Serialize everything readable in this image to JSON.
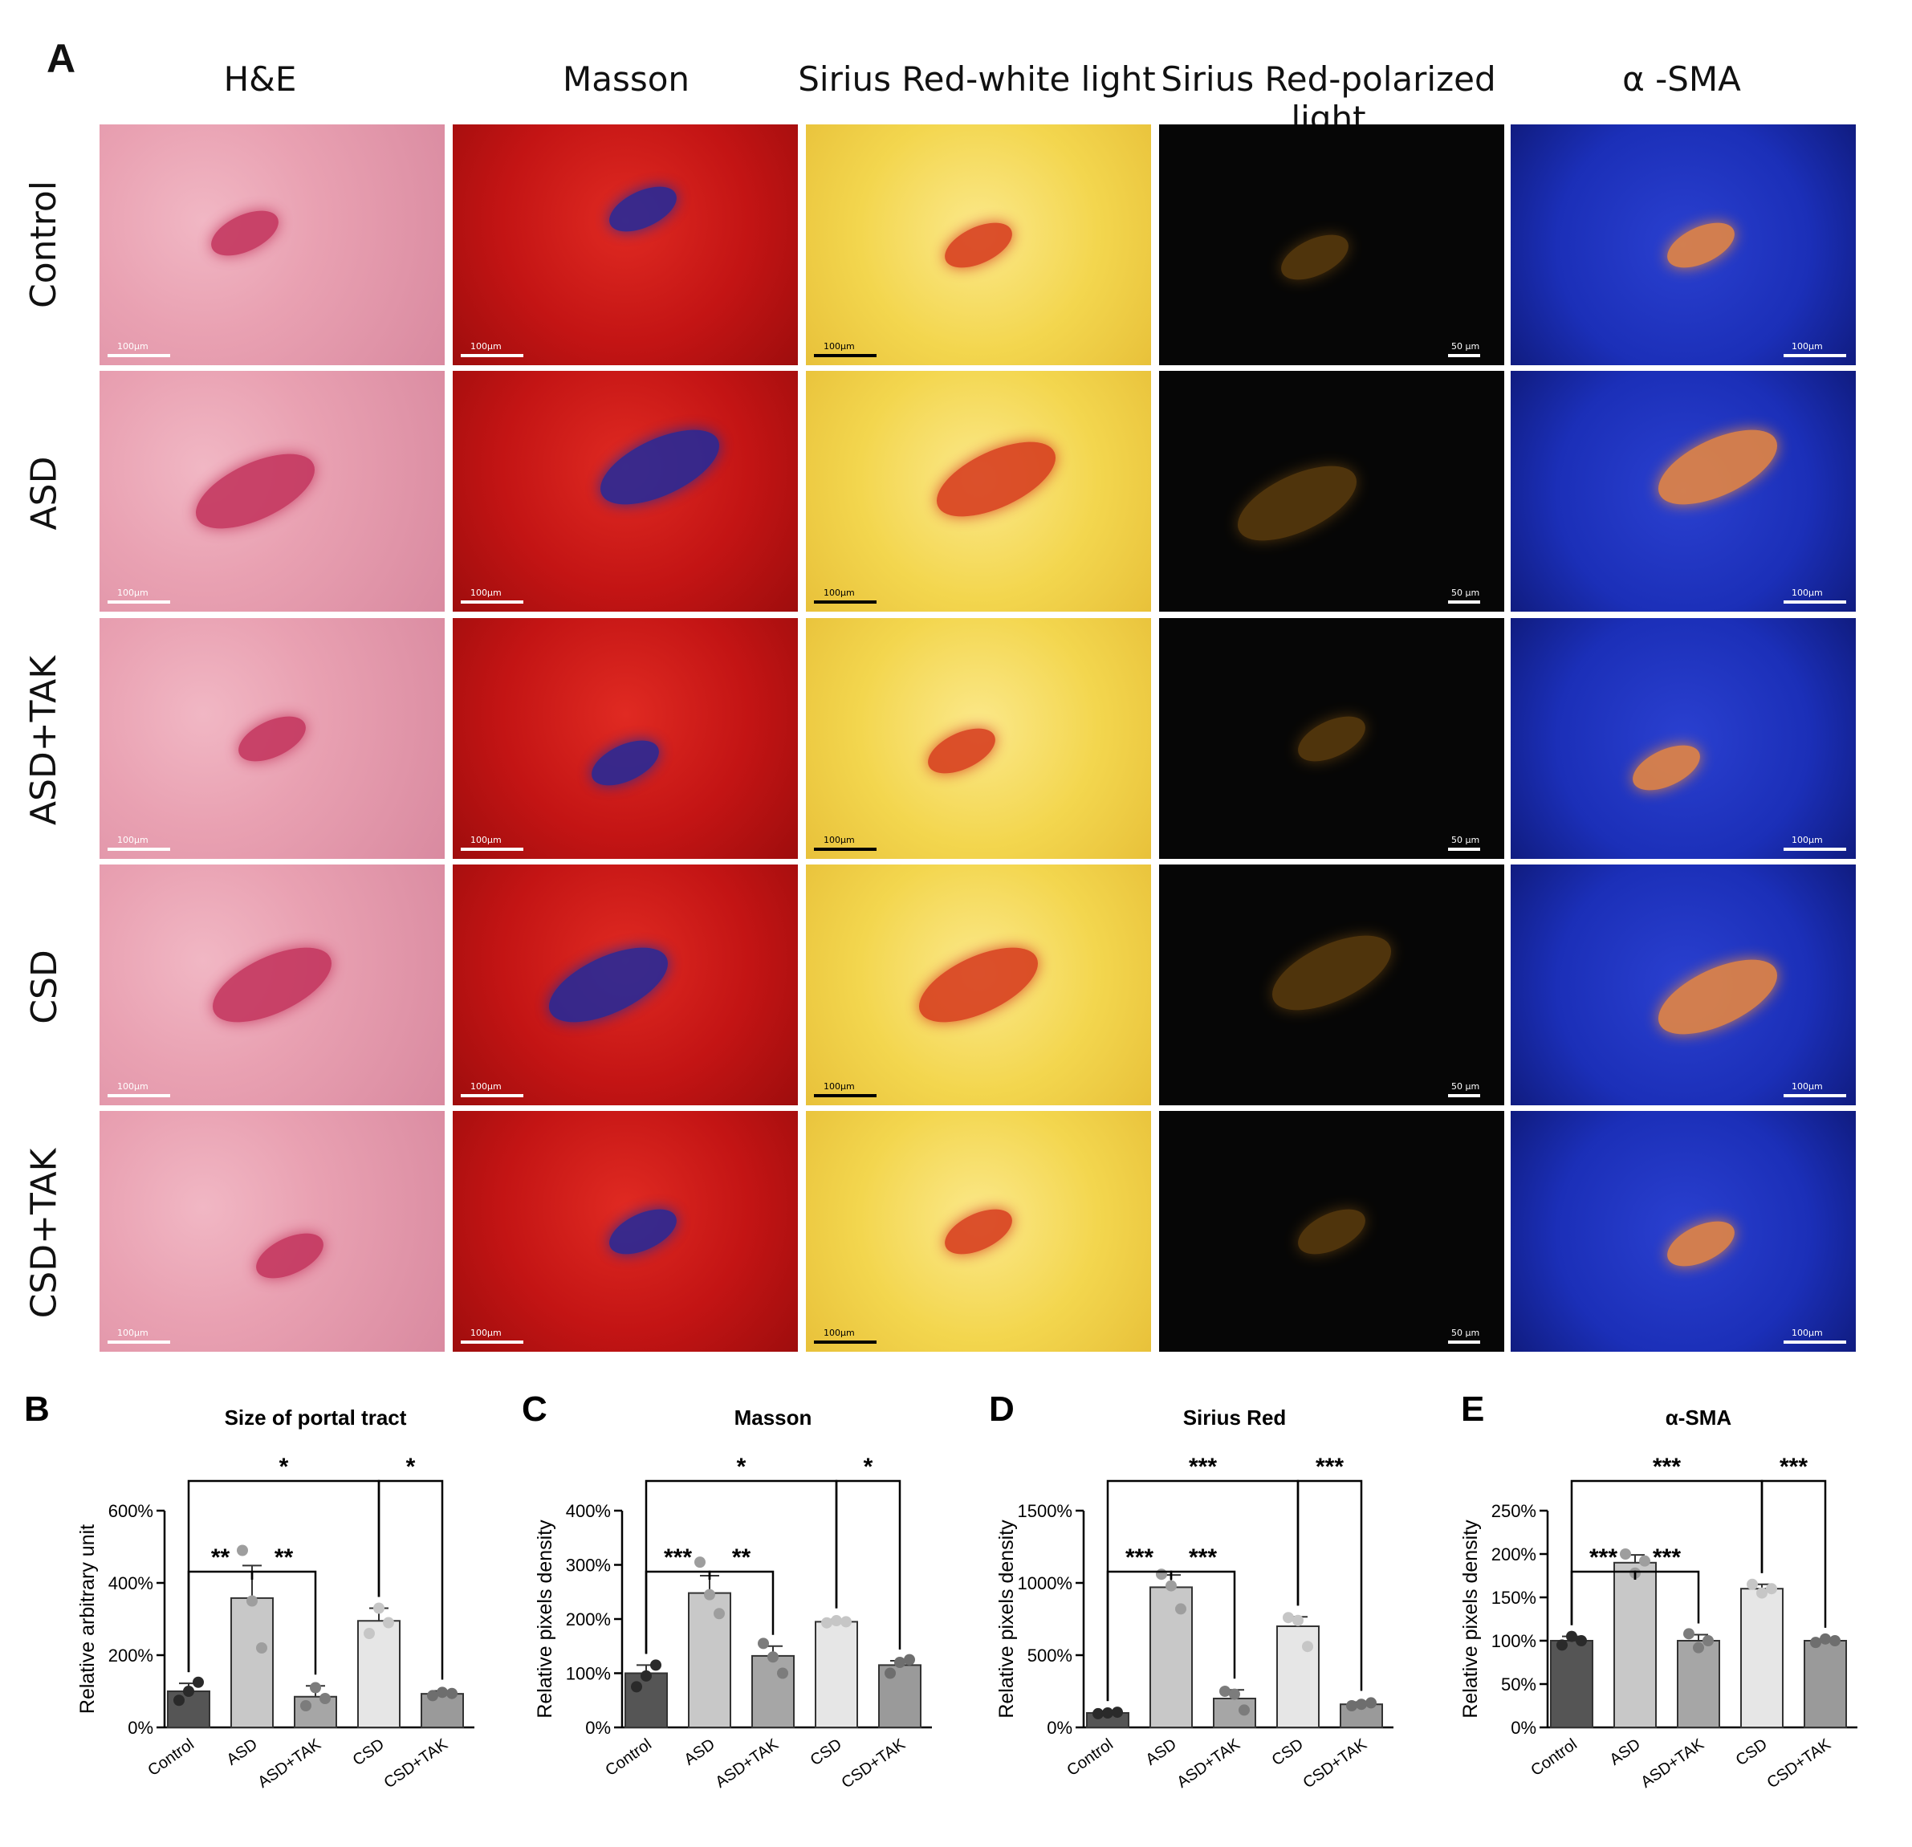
{
  "panelA": {
    "letter": "A",
    "columns": [
      "H&E",
      "Masson",
      "Sirius Red-white light",
      "Sirius Red-polarized light",
      "α -SMA"
    ],
    "rows": [
      "Control",
      "ASD",
      "ASD+TAK",
      "CSD",
      "CSD+TAK"
    ],
    "scale_label_100": "100µm",
    "scale_label_50": "50 µm",
    "stain_colors": {
      "he": "#e9a1b2",
      "masson": "#c31414",
      "sirius_white": "#f3d64e",
      "sirius_polarized": "#060606",
      "sma": "#1b2fb8"
    }
  },
  "chart_data": [
    {
      "type": "bar",
      "letter": "B",
      "title": "Size of portal tract",
      "ylabel": "Relative arbitrary unit",
      "xlabel": "",
      "categories": [
        "Control",
        "ASD",
        "ASD+TAK",
        "CSD",
        "CSD+TAK"
      ],
      "values": [
        100,
        358,
        85,
        295,
        93
      ],
      "errors": [
        22,
        90,
        30,
        35,
        8
      ],
      "points": [
        [
          75,
          100,
          125
        ],
        [
          490,
          350,
          220
        ],
        [
          60,
          110,
          80
        ],
        [
          260,
          330,
          290
        ],
        [
          88,
          97,
          94
        ]
      ],
      "ylim": [
        0,
        600
      ],
      "yticks": [
        0,
        200,
        400,
        600
      ],
      "ytick_labels": [
        "0%",
        "200%",
        "400%",
        "600%"
      ],
      "brackets": [
        {
          "from": 0,
          "to": 1,
          "label": "**",
          "level": 1
        },
        {
          "from": 1,
          "to": 2,
          "label": "**",
          "level": 1
        },
        {
          "from": 0,
          "to": 3,
          "label": "*",
          "level": 2
        },
        {
          "from": 3,
          "to": 4,
          "label": "*",
          "level": 2
        }
      ]
    },
    {
      "type": "bar",
      "letter": "C",
      "title": "Masson",
      "ylabel": "Relative pixels density",
      "xlabel": "",
      "categories": [
        "Control",
        "ASD",
        "ASD+TAK",
        "CSD",
        "CSD+TAK"
      ],
      "values": [
        100,
        248,
        132,
        195,
        115
      ],
      "errors": [
        15,
        32,
        18,
        4,
        8
      ],
      "points": [
        [
          75,
          95,
          115
        ],
        [
          305,
          245,
          210
        ],
        [
          155,
          130,
          100
        ],
        [
          193,
          197,
          195
        ],
        [
          100,
          120,
          125
        ]
      ],
      "ylim": [
        0,
        400
      ],
      "yticks": [
        0,
        100,
        200,
        300,
        400
      ],
      "ytick_labels": [
        "0%",
        "100%",
        "200%",
        "300%",
        "400%"
      ],
      "brackets": [
        {
          "from": 0,
          "to": 1,
          "label": "***",
          "level": 1
        },
        {
          "from": 1,
          "to": 2,
          "label": "**",
          "level": 1
        },
        {
          "from": 0,
          "to": 3,
          "label": "*",
          "level": 2
        },
        {
          "from": 3,
          "to": 4,
          "label": "*",
          "level": 2
        }
      ]
    },
    {
      "type": "bar",
      "letter": "D",
      "title": "Sirius Red",
      "ylabel": "Relative pixels density",
      "xlabel": "",
      "categories": [
        "Control",
        "ASD",
        "ASD+TAK",
        "CSD",
        "CSD+TAK"
      ],
      "values": [
        100,
        970,
        200,
        700,
        160
      ],
      "errors": [
        5,
        85,
        60,
        65,
        15
      ],
      "points": [
        [
          95,
          100,
          105
        ],
        [
          1060,
          980,
          820
        ],
        [
          250,
          230,
          120
        ],
        [
          760,
          740,
          560
        ],
        [
          150,
          160,
          170
        ]
      ],
      "ylim": [
        0,
        1500
      ],
      "yticks": [
        0,
        500,
        1000,
        1500
      ],
      "ytick_labels": [
        "0%",
        "500%",
        "1000%",
        "1500%"
      ],
      "brackets": [
        {
          "from": 0,
          "to": 1,
          "label": "***",
          "level": 1
        },
        {
          "from": 1,
          "to": 2,
          "label": "***",
          "level": 1
        },
        {
          "from": 0,
          "to": 3,
          "label": "***",
          "level": 2
        },
        {
          "from": 3,
          "to": 4,
          "label": "***",
          "level": 2
        }
      ]
    },
    {
      "type": "bar",
      "letter": "E",
      "title": "α-SMA",
      "ylabel": "Relative pixels density",
      "xlabel": "",
      "categories": [
        "Control",
        "ASD",
        "ASD+TAK",
        "CSD",
        "CSD+TAK"
      ],
      "values": [
        100,
        190,
        100,
        160,
        100
      ],
      "errors": [
        5,
        9,
        7,
        5,
        2
      ],
      "points": [
        [
          95,
          105,
          100
        ],
        [
          200,
          178,
          192
        ],
        [
          108,
          92,
          100
        ],
        [
          165,
          155,
          160
        ],
        [
          98,
          102,
          100
        ]
      ],
      "ylim": [
        0,
        250
      ],
      "yticks": [
        0,
        50,
        100,
        150,
        200,
        250
      ],
      "ytick_labels": [
        "0%",
        "50%",
        "100%",
        "150%",
        "200%",
        "250%"
      ],
      "brackets": [
        {
          "from": 0,
          "to": 1,
          "label": "***",
          "level": 1
        },
        {
          "from": 1,
          "to": 2,
          "label": "***",
          "level": 1
        },
        {
          "from": 0,
          "to": 3,
          "label": "***",
          "level": 2
        },
        {
          "from": 3,
          "to": 4,
          "label": "***",
          "level": 2
        }
      ]
    }
  ]
}
